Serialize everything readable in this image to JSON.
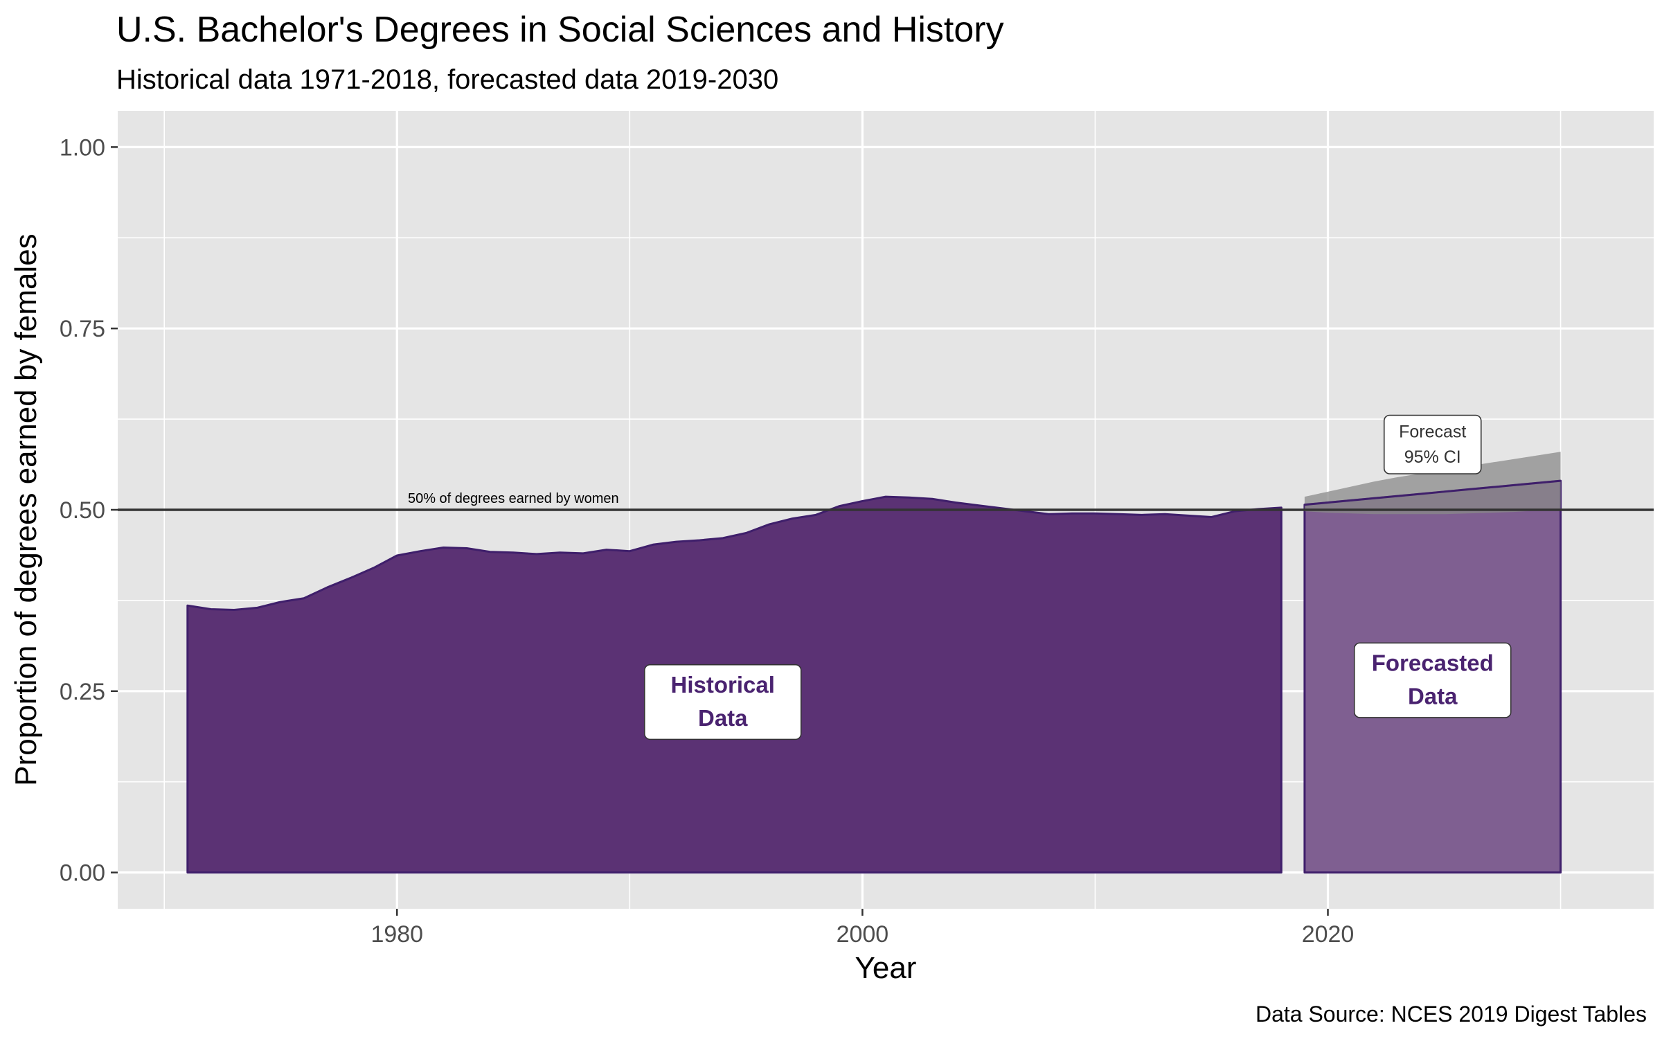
{
  "chart_data": {
    "type": "area",
    "title": "U.S. Bachelor's Degrees in Social Sciences and History",
    "subtitle": "Historical data 1971-2018, forecasted data 2019-2030",
    "xlabel": "Year",
    "ylabel": "Proportion of degrees earned by females",
    "caption": "Data Source: NCES 2019 Digest Tables",
    "xlim": [
      1968,
      2034
    ],
    "ylim": [
      -0.05,
      1.05
    ],
    "x_ticks": [
      1980,
      2000,
      2020
    ],
    "x_tick_labels": [
      "1980",
      "2000",
      "2020"
    ],
    "y_ticks": [
      0,
      0.25,
      0.5,
      0.75,
      1.0
    ],
    "y_tick_labels": [
      "0.00",
      "0.25",
      "0.50",
      "0.75",
      "1.00"
    ],
    "grid": true,
    "reference_line": {
      "y": 0.5,
      "label": "50% of degrees earned by women",
      "label_x": 1985
    },
    "historical": {
      "x": [
        1971,
        1972,
        1973,
        1974,
        1975,
        1976,
        1977,
        1978,
        1979,
        1980,
        1981,
        1982,
        1983,
        1984,
        1985,
        1986,
        1987,
        1988,
        1989,
        1990,
        1991,
        1992,
        1993,
        1994,
        1995,
        1996,
        1997,
        1998,
        1999,
        2000,
        2001,
        2002,
        2003,
        2004,
        2005,
        2006,
        2007,
        2008,
        2009,
        2010,
        2011,
        2012,
        2013,
        2014,
        2015,
        2016,
        2017,
        2018
      ],
      "y": [
        0.368,
        0.363,
        0.362,
        0.365,
        0.373,
        0.378,
        0.393,
        0.406,
        0.42,
        0.437,
        0.443,
        0.448,
        0.447,
        0.442,
        0.441,
        0.439,
        0.441,
        0.44,
        0.445,
        0.443,
        0.452,
        0.456,
        0.458,
        0.461,
        0.468,
        0.48,
        0.488,
        0.493,
        0.505,
        0.512,
        0.518,
        0.517,
        0.515,
        0.51,
        0.506,
        0.502,
        0.498,
        0.494,
        0.495,
        0.495,
        0.494,
        0.493,
        0.494,
        0.492,
        0.49,
        0.498,
        0.501,
        0.503
      ],
      "label": "Historical\nData",
      "label_x": 1994,
      "label_y": 0.235
    },
    "forecast": {
      "x": [
        2019,
        2020,
        2021,
        2022,
        2023,
        2024,
        2025,
        2026,
        2027,
        2028,
        2029,
        2030
      ],
      "y": [
        0.507,
        0.51,
        0.513,
        0.516,
        0.519,
        0.522,
        0.525,
        0.528,
        0.531,
        0.534,
        0.537,
        0.54
      ],
      "ci_lower": [
        0.498,
        0.496,
        0.495,
        0.494,
        0.494,
        0.494,
        0.494,
        0.495,
        0.496,
        0.497,
        0.499,
        0.501
      ],
      "ci_upper": [
        0.518,
        0.525,
        0.532,
        0.539,
        0.545,
        0.55,
        0.555,
        0.56,
        0.565,
        0.57,
        0.575,
        0.58
      ],
      "label": "Forecasted\nData",
      "label_x": 2024.5,
      "label_y": 0.265,
      "ci_label": "Forecast\n95% CI",
      "ci_label_x": 2024.5,
      "ci_label_y": 0.59
    },
    "colors": {
      "panel": "#e5e5e5",
      "grid": "#ffffff",
      "historical_fill": "#5b3274",
      "forecast_fill": "#7f5f91",
      "outline": "#3f1f6b",
      "ci_fill": "#8a8a8a",
      "ref_line": "#333333",
      "label_text": "#4a2370",
      "axis_text": "#4d4d4d",
      "title_text": "#000000"
    }
  }
}
